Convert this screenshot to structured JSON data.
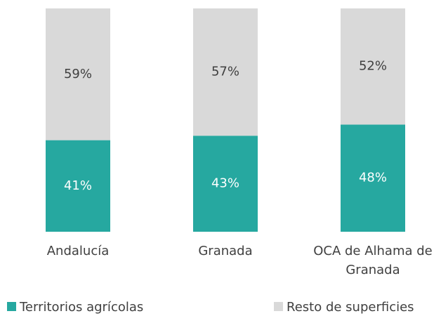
{
  "chart_data": {
    "type": "stacked-bar",
    "categories": [
      "Andalucía",
      "Granada",
      "OCA de Alhama de Granada"
    ],
    "series": [
      {
        "name": "Territorios agrícolas",
        "color": "#26a8a0",
        "values": [
          41,
          43,
          48
        ],
        "value_labels": [
          "41%",
          "43%",
          "48%"
        ],
        "label_color": "#ffffff"
      },
      {
        "name": "Resto de superficies",
        "color": "#d9d9d9",
        "values": [
          59,
          57,
          52
        ],
        "value_labels": [
          "59%",
          "57%",
          "52%"
        ],
        "label_color": "#404040"
      }
    ],
    "ylim": [
      0,
      100
    ]
  }
}
